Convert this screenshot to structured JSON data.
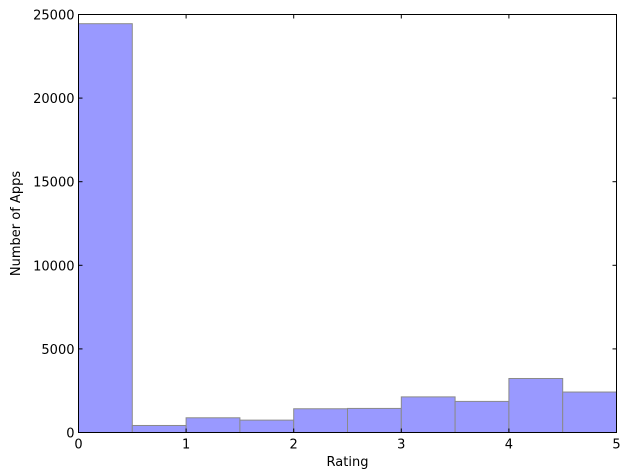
{
  "chart_data": {
    "type": "bar",
    "title": "",
    "xlabel": "Rating",
    "ylabel": "Number of Apps",
    "xlim": [
      0,
      5
    ],
    "ylim": [
      0,
      25000
    ],
    "bins": [
      {
        "start": 0.0,
        "end": 0.5,
        "value": 24450
      },
      {
        "start": 0.5,
        "end": 1.0,
        "value": 420
      },
      {
        "start": 1.0,
        "end": 1.5,
        "value": 880
      },
      {
        "start": 1.5,
        "end": 2.0,
        "value": 740
      },
      {
        "start": 2.0,
        "end": 2.5,
        "value": 1420
      },
      {
        "start": 2.5,
        "end": 3.0,
        "value": 1440
      },
      {
        "start": 3.0,
        "end": 3.5,
        "value": 2130
      },
      {
        "start": 3.5,
        "end": 4.0,
        "value": 1860
      },
      {
        "start": 4.0,
        "end": 4.5,
        "value": 3230
      },
      {
        "start": 4.5,
        "end": 5.0,
        "value": 2420
      }
    ],
    "x_ticks": [
      {
        "value": 0,
        "label": "0"
      },
      {
        "value": 1,
        "label": "1"
      },
      {
        "value": 2,
        "label": "2"
      },
      {
        "value": 3,
        "label": "3"
      },
      {
        "value": 4,
        "label": "4"
      },
      {
        "value": 5,
        "label": "5"
      }
    ],
    "y_ticks": [
      {
        "value": 0,
        "label": "0"
      },
      {
        "value": 5000,
        "label": "5000"
      },
      {
        "value": 10000,
        "label": "10000"
      },
      {
        "value": 15000,
        "label": "15000"
      },
      {
        "value": 20000,
        "label": "20000"
      },
      {
        "value": 25000,
        "label": "25000"
      }
    ],
    "grid": false,
    "legend": "none",
    "colors": {
      "bar_fill": "#9999ff",
      "bar_edge": "#8a8a8a",
      "axis": "#000000"
    }
  }
}
